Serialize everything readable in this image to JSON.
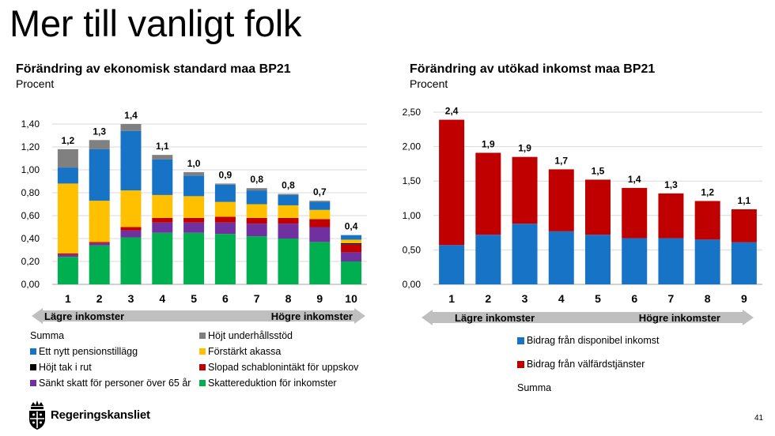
{
  "slide": {
    "title": "Mer till vanligt folk",
    "page_number": "41",
    "logo_text": "Regeringskansliet"
  },
  "colors": {
    "gray": "#808080",
    "blue": "#1673c6",
    "yellow": "#ffc000",
    "black": "#000000",
    "red": "#c00000",
    "purple": "#7030a0",
    "green": "#00b050",
    "grid": "#d9d9d9",
    "arrow": "#bfbfbf"
  },
  "chart_data": [
    {
      "type": "bar",
      "stacked": true,
      "title": "Förändring av ekonomisk standard maa BP21",
      "subtitle": "Procent",
      "categories": [
        "1",
        "2",
        "3",
        "4",
        "5",
        "6",
        "7",
        "8",
        "9",
        "10"
      ],
      "ylim": [
        0,
        1.4
      ],
      "yticks": [
        "0,00",
        "0,20",
        "0,40",
        "0,60",
        "0,80",
        "1,00",
        "1,20",
        "1,40"
      ],
      "grid": true,
      "arrow_left_label": "Lägre inkomster",
      "arrow_right_label": "Högre inkomster",
      "totals": [
        "1,2",
        "1,3",
        "1,4",
        "1,1",
        "1,0",
        "0,9",
        "0,8",
        "0,8",
        "0,7",
        "0,4"
      ],
      "series": [
        {
          "name": "Skattereduktion för inkomster",
          "color": "#00b050",
          "values": [
            0.24,
            0.34,
            0.41,
            0.45,
            0.45,
            0.44,
            0.42,
            0.4,
            0.37,
            0.2
          ]
        },
        {
          "name": "Sänkt skatt för personer över 65 år",
          "color": "#7030a0",
          "values": [
            0.02,
            0.02,
            0.06,
            0.09,
            0.09,
            0.1,
            0.11,
            0.13,
            0.13,
            0.08
          ]
        },
        {
          "name": "Slopad schablonintäkt för uppskov",
          "color": "#c00000",
          "values": [
            0.01,
            0.01,
            0.03,
            0.04,
            0.04,
            0.05,
            0.05,
            0.05,
            0.07,
            0.07
          ]
        },
        {
          "name": "Höjt tak i rut",
          "color": "#000000",
          "values": [
            0,
            0,
            0,
            0,
            0,
            0,
            0,
            0,
            0,
            0.01
          ]
        },
        {
          "name": "Förstärkt akassa",
          "color": "#ffc000",
          "values": [
            0.61,
            0.36,
            0.32,
            0.2,
            0.19,
            0.13,
            0.12,
            0.11,
            0.08,
            0.03
          ]
        },
        {
          "name": "Ett nytt pensionstillägg",
          "color": "#1673c6",
          "values": [
            0.14,
            0.45,
            0.52,
            0.31,
            0.18,
            0.15,
            0.12,
            0.09,
            0.07,
            0.04
          ]
        },
        {
          "name": "Höjt underhållsstöd",
          "color": "#808080",
          "values": [
            0.16,
            0.08,
            0.06,
            0.04,
            0.03,
            0.01,
            0.02,
            0.01,
            0.01,
            0
          ]
        }
      ],
      "legend": [
        {
          "label": "Summa",
          "color": ""
        },
        {
          "label": "Höjt underhållsstöd",
          "color": "#808080"
        },
        {
          "label": "Ett nytt pensionstillägg",
          "color": "#1673c6"
        },
        {
          "label": "Förstärkt akassa",
          "color": "#ffc000"
        },
        {
          "label": "Höjt tak i rut",
          "color": "#000000"
        },
        {
          "label": "Slopad schablonintäkt för uppskov",
          "color": "#c00000"
        },
        {
          "label": "Sänkt skatt för personer över 65 år",
          "color": "#7030a0"
        },
        {
          "label": "Skattereduktion för inkomster",
          "color": "#00b050"
        }
      ],
      "legend_placement": "bottom"
    },
    {
      "type": "bar",
      "stacked": true,
      "title": "Förändring av utökad inkomst maa BP21",
      "subtitle": "Procent",
      "categories": [
        "1",
        "2",
        "3",
        "4",
        "5",
        "6",
        "7",
        "8",
        "9"
      ],
      "ylim": [
        0,
        2.5
      ],
      "yticks": [
        "0,00",
        "0,50",
        "1,00",
        "1,50",
        "2,00",
        "2,50"
      ],
      "grid": true,
      "arrow_left_label": "Lägre inkomster",
      "arrow_right_label": "Högre inkomster",
      "totals": [
        "2,4",
        "1,9",
        "1,9",
        "1,7",
        "1,5",
        "1,4",
        "1,3",
        "1,2",
        "1,1"
      ],
      "series": [
        {
          "name": "Bidrag från disponibel inkomst",
          "color": "#1673c6",
          "values": [
            0.57,
            0.72,
            0.88,
            0.77,
            0.72,
            0.67,
            0.67,
            0.65,
            0.61
          ]
        },
        {
          "name": "Bidrag från välfärdstjänster",
          "color": "#c00000",
          "values": [
            1.82,
            1.19,
            0.97,
            0.9,
            0.8,
            0.73,
            0.65,
            0.56,
            0.48
          ]
        }
      ],
      "legend": [
        {
          "label": "Bidrag från disponibel inkomst",
          "color": "#1673c6"
        },
        {
          "label": "Bidrag från välfärdstjänster",
          "color": "#c00000"
        },
        {
          "label": "Summa",
          "color": ""
        }
      ],
      "legend_placement": "bottom"
    }
  ]
}
